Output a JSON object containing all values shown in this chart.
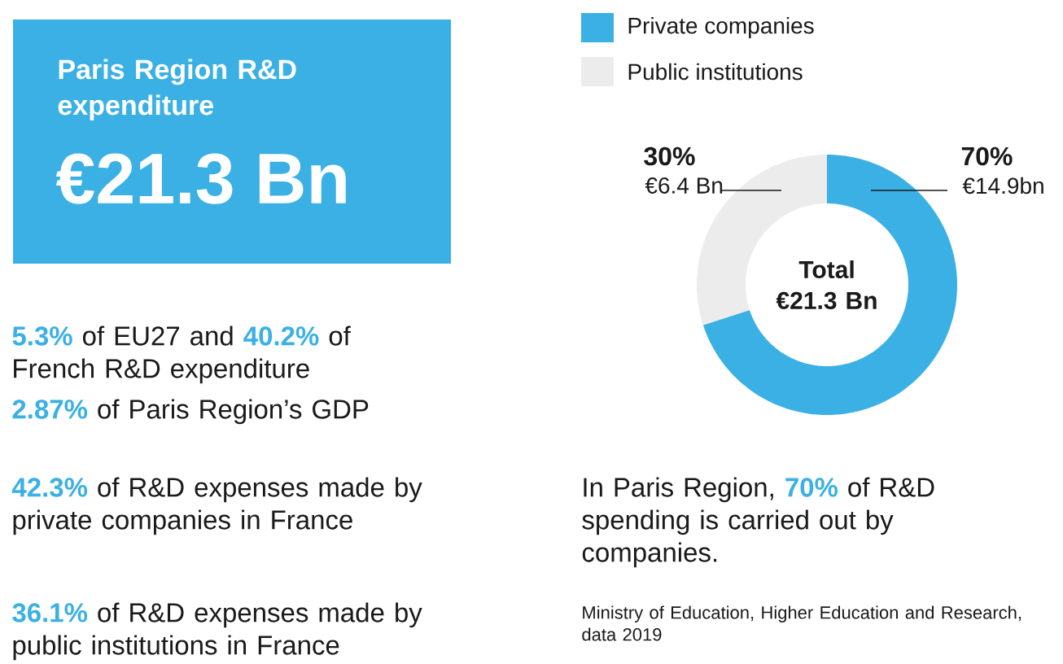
{
  "chart_data": [
    {
      "type": "other",
      "title": "Paris Region R&D expenditure",
      "subtitle": "€21.3 Bn",
      "color": "#3bb0e4",
      "annotations": [
        "**5.3%** of EU27 and **40.2%** of French  R&D expenditure",
        "**2.87%** of Paris Region’s GDP",
        "**42.3%** of R&D expenses made by private companies in France",
        "**36.1%** of R&D expenses made by public institutions in France"
      ]
    },
    {
      "type": "donut",
      "categories": [
        "Private companies",
        "Public institutions"
      ],
      "values": [
        70,
        30
      ],
      "colors": [
        "#3bb0e4",
        "#ececec"
      ],
      "legend": "top",
      "value_labels": [
        "70%",
        "30%"
      ],
      "annotations": [
        "€14.9bn",
        "€6.4 Bn",
        "Total €21.3 Bn",
        "In Paris Region, **70%** of R&D spending is carried out by companies.",
        "Ministry of Education, Higher Education and Research, data 2019"
      ]
    }
  ]
}
